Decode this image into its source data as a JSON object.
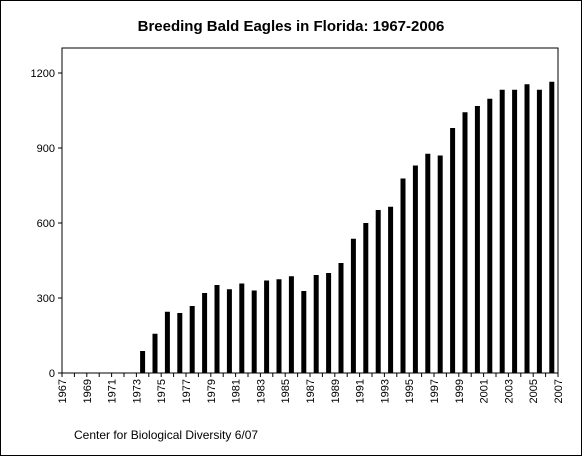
{
  "chart_data": {
    "type": "bar",
    "title": "Breeding Bald Eagles in Florida: 1967-2006",
    "xlabel": "",
    "ylabel": "",
    "ylim": [
      0,
      1300
    ],
    "yticks": [
      "0",
      "300",
      "600",
      "900",
      "1200"
    ],
    "ytick_values": [
      0,
      300,
      600,
      900,
      1200
    ],
    "xtick_labels": [
      "1967",
      "1969",
      "1971",
      "1973",
      "1975",
      "1977",
      "1979",
      "1981",
      "1983",
      "1985",
      "1987",
      "1989",
      "1991",
      "1993",
      "1995",
      "1997",
      "1999",
      "2001",
      "2003",
      "2005",
      "2007"
    ],
    "categories": [
      1967,
      1968,
      1969,
      1970,
      1971,
      1972,
      1973,
      1974,
      1975,
      1976,
      1977,
      1978,
      1979,
      1980,
      1981,
      1982,
      1983,
      1984,
      1985,
      1986,
      1987,
      1988,
      1989,
      1990,
      1991,
      1992,
      1993,
      1994,
      1995,
      1996,
      1997,
      1998,
      1999,
      2000,
      2001,
      2002,
      2003,
      2004,
      2005,
      2006
    ],
    "values": [
      0,
      0,
      0,
      0,
      0,
      0,
      88,
      157,
      245,
      240,
      268,
      320,
      352,
      335,
      358,
      330,
      370,
      375,
      387,
      328,
      392,
      400,
      440,
      537,
      600,
      652,
      665,
      778,
      830,
      877,
      870,
      980,
      1043,
      1068,
      1097,
      1133,
      1133,
      1155,
      1133,
      1165
    ],
    "bar_color": "#000000",
    "grid": false,
    "legend": "none"
  },
  "footer": {
    "credit": "Center for Biological Diversity 6/07"
  }
}
